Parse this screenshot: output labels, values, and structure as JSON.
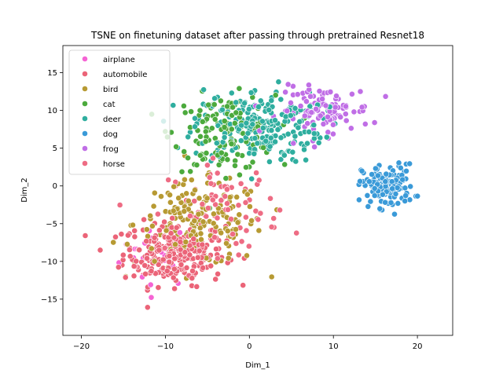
{
  "chart_data": {
    "type": "scatter",
    "title": "TSNE on finetuning dataset after passing through pretrained Resnet18",
    "xlabel": "Dim_1",
    "ylabel": "Dim_2",
    "xlim": [
      -22.2,
      24.2
    ],
    "ylim": [
      -19.8,
      18.6
    ],
    "xticks": [
      -20,
      -10,
      0,
      10,
      20
    ],
    "yticks": [
      -15,
      -10,
      -5,
      0,
      5,
      10,
      15
    ],
    "grid": false,
    "legend_position": "top-left",
    "series": [
      {
        "name": "airplane",
        "color": "#f564d4",
        "cx": -11,
        "cy": -9,
        "sx": 4,
        "sy": 4,
        "n": 25
      },
      {
        "name": "automobile",
        "color": "#eb6478",
        "cx": -9,
        "cy": -9,
        "sx": 5.5,
        "sy": 3.8,
        "n": 260
      },
      {
        "name": "bird",
        "color": "#b79a33",
        "cx": -6,
        "cy": -5,
        "sx": 7,
        "sy": 5,
        "n": 170
      },
      {
        "name": "cat",
        "color": "#4caa3d",
        "cx": -3,
        "cy": 7,
        "sx": 5.5,
        "sy": 4.5,
        "n": 140
      },
      {
        "name": "deer",
        "color": "#2fae9f",
        "cx": 1,
        "cy": 8,
        "sx": 7,
        "sy": 4.5,
        "n": 230
      },
      {
        "name": "dog",
        "color": "#3a9ad8",
        "cx": 16.5,
        "cy": 0,
        "sx": 2.8,
        "sy": 2.6,
        "n": 140
      },
      {
        "name": "frog",
        "color": "#c06ee6",
        "cx": 9,
        "cy": 10,
        "sx": 5,
        "sy": 2.8,
        "n": 110
      },
      {
        "name": "horse",
        "color": "#ee6c84",
        "cx": -3,
        "cy": -3,
        "sx": 6,
        "sy": 5.5,
        "n": 80
      }
    ]
  }
}
